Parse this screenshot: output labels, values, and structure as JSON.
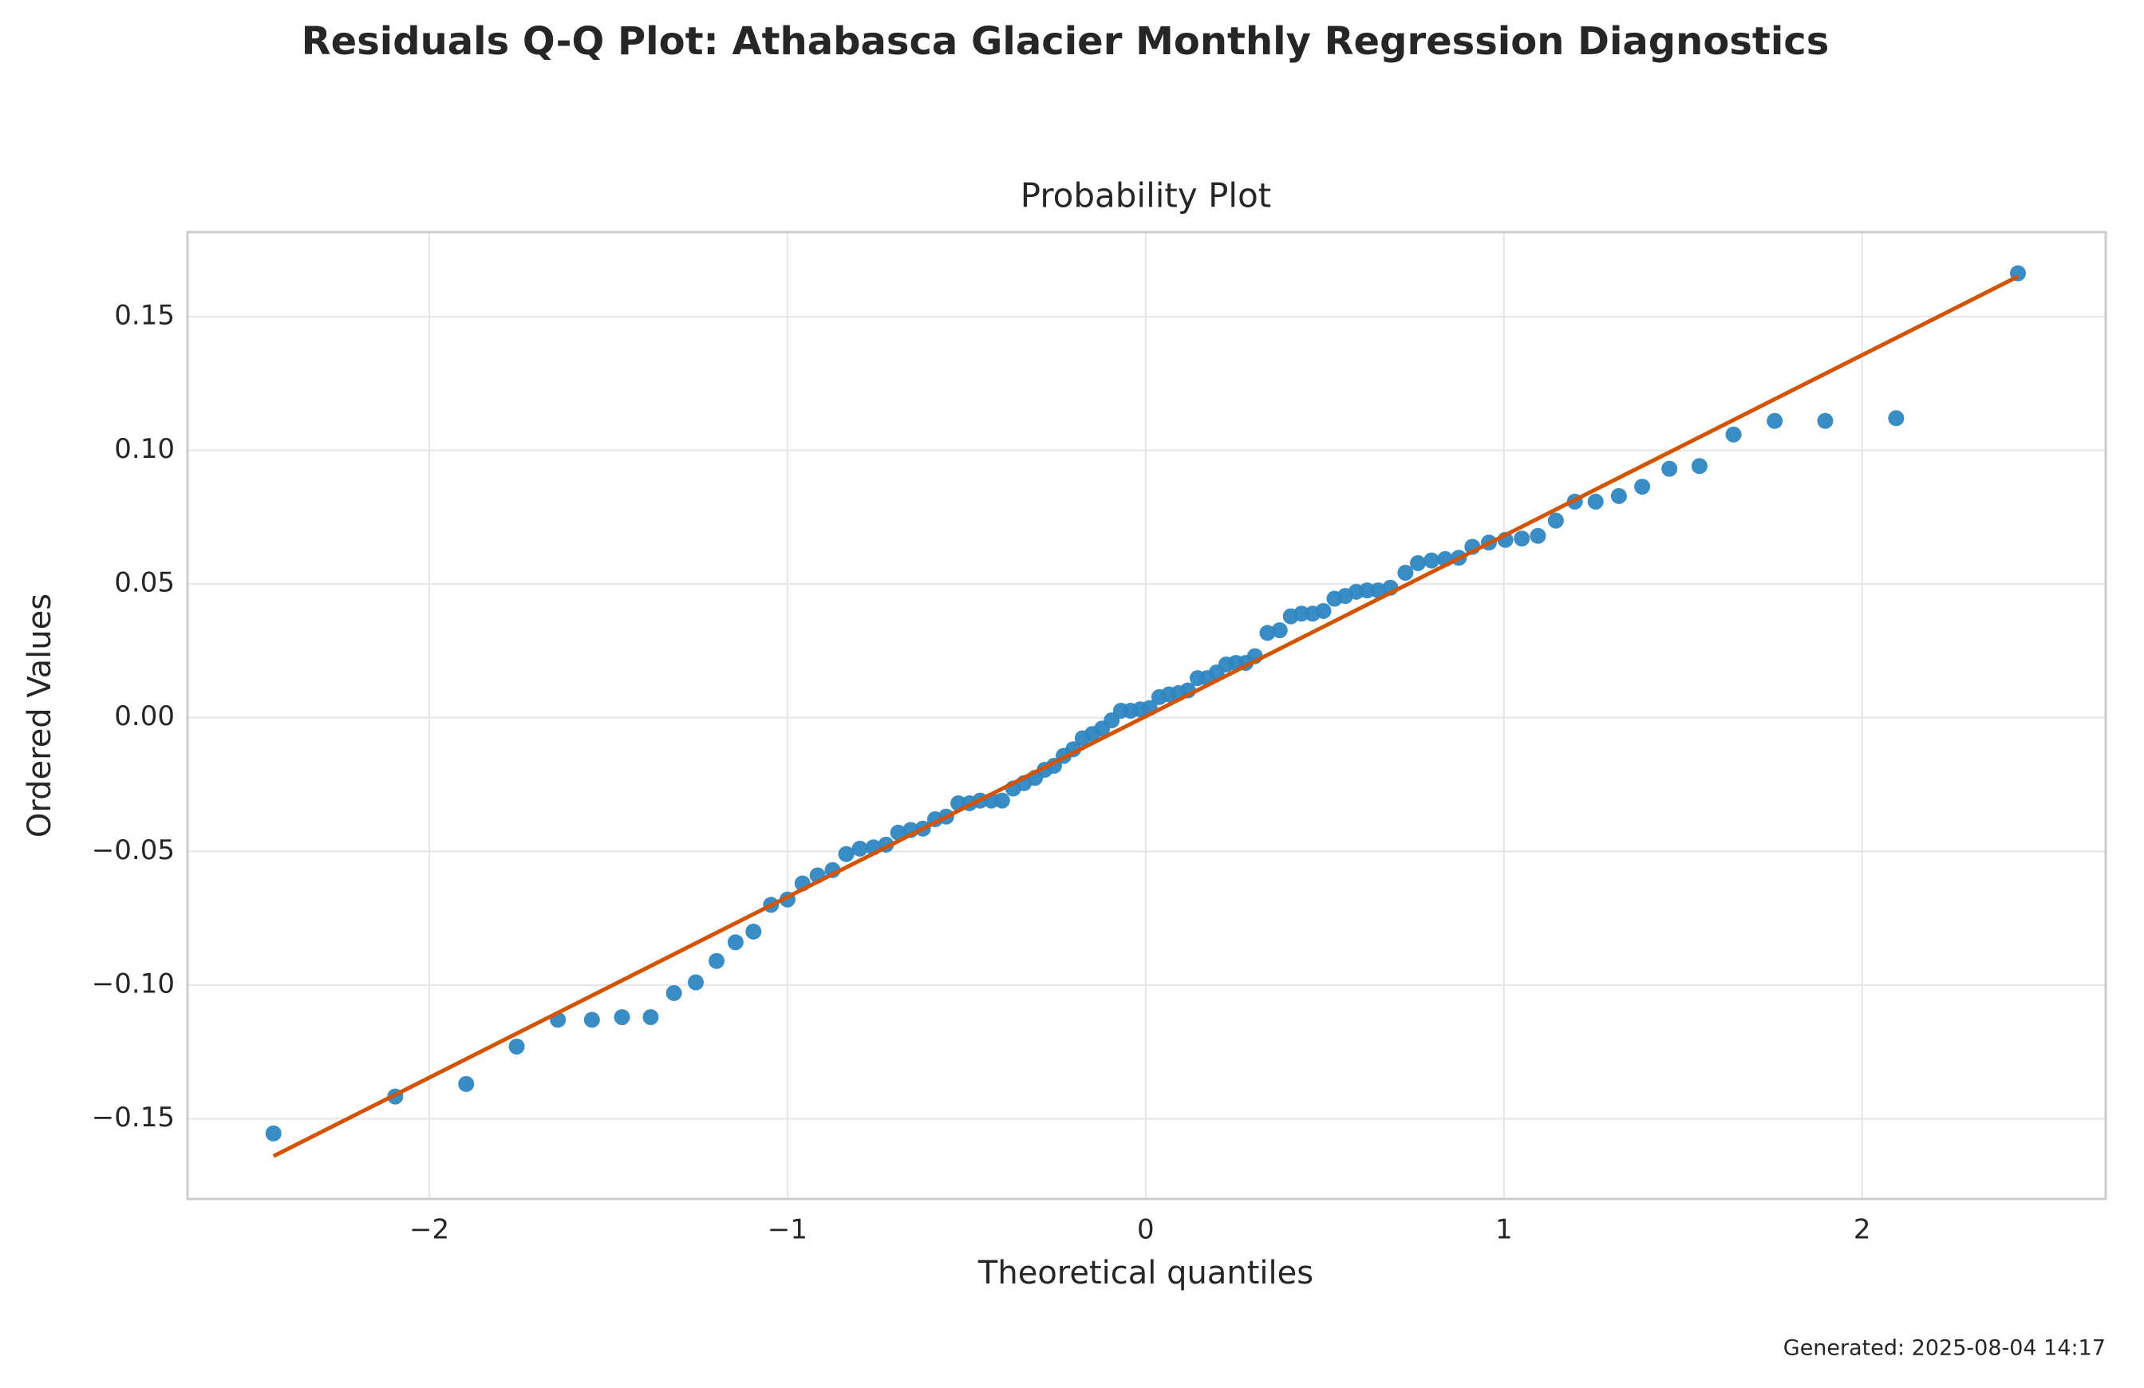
{
  "chart_data": {
    "type": "scatter",
    "title": "Residuals Q-Q Plot: Athabasca Glacier Monthly Regression Diagnostics",
    "subtitle": "Probability Plot",
    "x_label": "Theoretical quantiles",
    "y_label": "Ordered Values",
    "footer": "Generated: 2025-08-04 14:17",
    "grid": true,
    "xlim": [
      -2.675,
      2.68
    ],
    "ylim": [
      -0.18,
      0.1816
    ],
    "xticks": [
      {
        "value": -2,
        "label": "−2"
      },
      {
        "value": -1,
        "label": "−1"
      },
      0,
      1,
      2
    ],
    "yticks": [
      {
        "value": -0.15,
        "label": "−0.15"
      },
      {
        "value": -0.1,
        "label": "−0.10"
      },
      {
        "value": -0.05,
        "label": "−0.05"
      },
      {
        "value": 0,
        "label": "0.00"
      },
      0.05,
      {
        "value": 0.1,
        "label": "0.10"
      },
      0.15
    ],
    "series": [
      {
        "type": "scatter",
        "color": "#2e86c1",
        "x": [
          -2.435,
          -2.095,
          -1.897,
          -1.756,
          -1.641,
          -1.546,
          -1.462,
          -1.382,
          -1.317,
          -1.256,
          -1.198,
          -1.145,
          -1.095,
          -1.046,
          -1.0,
          -0.958,
          -0.916,
          -0.874,
          -0.836,
          -0.798,
          -0.76,
          -0.725,
          -0.691,
          -0.656,
          -0.622,
          -0.588,
          -0.557,
          -0.523,
          -0.492,
          -0.462,
          -0.431,
          -0.401,
          -0.37,
          -0.34,
          -0.309,
          -0.282,
          -0.256,
          -0.229,
          -0.202,
          -0.176,
          -0.149,
          -0.122,
          -0.095,
          -0.069,
          -0.042,
          -0.015,
          0.011,
          0.038,
          0.065,
          0.092,
          0.118,
          0.145,
          0.172,
          0.198,
          0.225,
          0.252,
          0.279,
          0.305,
          0.34,
          0.374,
          0.405,
          0.435,
          0.466,
          0.496,
          0.527,
          0.557,
          0.588,
          0.618,
          0.649,
          0.683,
          0.725,
          0.76,
          0.798,
          0.836,
          0.874,
          0.912,
          0.958,
          1.004,
          1.05,
          1.095,
          1.145,
          1.198,
          1.256,
          1.321,
          1.386,
          1.462,
          1.546,
          1.641,
          1.756,
          1.897,
          2.095,
          2.435
        ],
        "values": [
          -0.1555,
          -0.1417,
          -0.137,
          -0.123,
          -0.113,
          -0.113,
          -0.112,
          -0.112,
          -0.103,
          -0.099,
          -0.091,
          -0.084,
          -0.08,
          -0.07,
          -0.068,
          -0.062,
          -0.059,
          -0.057,
          -0.051,
          -0.049,
          -0.0485,
          -0.0475,
          -0.043,
          -0.042,
          -0.0415,
          -0.038,
          -0.037,
          -0.032,
          -0.032,
          -0.031,
          -0.031,
          -0.031,
          -0.0265,
          -0.0245,
          -0.0225,
          -0.0195,
          -0.018,
          -0.0143,
          -0.0118,
          -0.0077,
          -0.0061,
          -0.0041,
          -0.001,
          0.0026,
          0.0026,
          0.0031,
          0.0036,
          0.0077,
          0.0087,
          0.0092,
          0.0102,
          0.0148,
          0.0148,
          0.0169,
          0.0199,
          0.0205,
          0.0205,
          0.023,
          0.0317,
          0.0327,
          0.0379,
          0.0389,
          0.0389,
          0.0399,
          0.0445,
          0.0455,
          0.0471,
          0.0476,
          0.0476,
          0.0486,
          0.0542,
          0.0578,
          0.0588,
          0.0593,
          0.0598,
          0.0639,
          0.0655,
          0.0665,
          0.067,
          0.068,
          0.0737,
          0.0808,
          0.0808,
          0.0829,
          0.0864,
          0.0931,
          0.0941,
          0.1059,
          0.111,
          0.111,
          0.112,
          0.1662
        ]
      },
      {
        "type": "line",
        "color": "#d35400",
        "x": [
          -2.435,
          2.435
        ],
        "values": [
          -0.164,
          0.165
        ]
      }
    ]
  }
}
